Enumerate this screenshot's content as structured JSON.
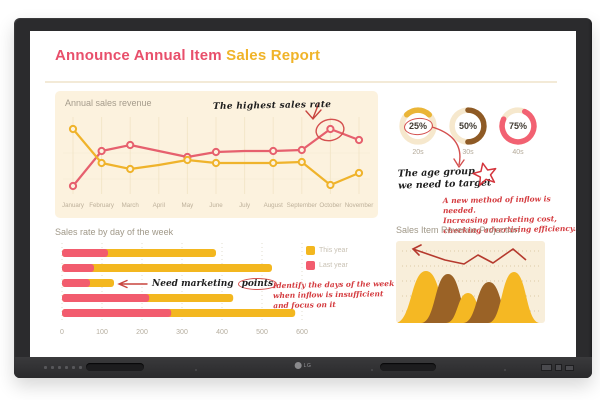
{
  "header": {
    "title_primary": "Announce Annual Item",
    "title_secondary": "Sales Report"
  },
  "device": {
    "brand": "LG"
  },
  "colors": {
    "title_pink": "#e84f6b",
    "title_yellow": "#f0b429",
    "line_red": "#e6606e",
    "line_yellow": "#efb32b",
    "bar_pink": "#f25c6e",
    "bar_yellow": "#f3b71f",
    "panel_cream": "#fcf2de",
    "donut_track": "#f6e8cd",
    "donut_brown": "#8e5a25",
    "donut_pink": "#f26172",
    "red_ink": "#d43b3f",
    "sketch_red": "#d4504f",
    "proj_yellow": "#f5b823",
    "proj_brown": "#9a6226",
    "proj_line": "#b5392d"
  },
  "annotations": {
    "highest": "The highest sales rate",
    "marketing_prefix": "Need marketing",
    "marketing_circled": "points",
    "age_group_line1": "The age group",
    "age_group_line2": "we need to target",
    "weekday_note_lines": [
      "Identify the days of the week",
      "when inflow is insufficient",
      "and focus on it"
    ],
    "inflow_note_lines": [
      "A new method of inflow is needed.",
      "Increasing marketing cost,",
      "checking advertising efficiency."
    ]
  },
  "chart_data": [
    {
      "id": "annual_sales_revenue",
      "type": "line",
      "title": "Annual sales revenue",
      "x": [
        "January",
        "February",
        "March",
        "April",
        "May",
        "June",
        "July",
        "August",
        "September",
        "October",
        "November"
      ],
      "series": [
        {
          "name": "red series",
          "color": "#e6606e",
          "values": [
            10,
            45,
            51,
            45,
            39,
            44,
            45,
            45,
            46,
            67,
            56
          ]
        },
        {
          "name": "yellow series",
          "color": "#efb32b",
          "values": [
            67,
            33,
            27,
            31,
            36,
            33,
            33,
            33,
            34,
            11,
            23
          ]
        }
      ],
      "marker_skip_indices": [
        3,
        6
      ],
      "ylim": [
        0,
        80
      ],
      "grid": "vertical",
      "annotation": "The highest sales rate",
      "highlight": {
        "series": 0,
        "month": "October",
        "value": 67
      }
    },
    {
      "id": "sales_rate_by_day_of_week",
      "type": "bar",
      "title": "Sales rate by day of the week",
      "orientation": "horizontal",
      "stacked": true,
      "categories": [
        "",
        "",
        "",
        "",
        ""
      ],
      "series": [
        {
          "name": "Last year",
          "color": "#f25c6e",
          "values": [
            115,
            80,
            70,
            218,
            273
          ]
        },
        {
          "name": "This year",
          "color": "#f3b71f",
          "values": [
            270,
            445,
            60,
            210,
            310
          ]
        }
      ],
      "xlim": [
        0,
        600
      ],
      "xticks": [
        0,
        100,
        200,
        300,
        400,
        500,
        600
      ],
      "legend_position": "right",
      "annotation": "Need marketing points",
      "note": "Identify the days of the week when inflow is insufficient and focus on it"
    },
    {
      "id": "age_group_share",
      "type": "pie",
      "style": "donut",
      "items": [
        {
          "label": "20s",
          "value": 25,
          "display": "25%",
          "color": "#eab537",
          "highlighted": true
        },
        {
          "label": "30s",
          "value": 50,
          "display": "50%",
          "color": "#8e5a25",
          "highlighted": false
        },
        {
          "label": "40s",
          "value": 75,
          "display": "75%",
          "color": "#f26172",
          "highlighted": false
        }
      ],
      "note": "The age group we need to target"
    },
    {
      "id": "sales_item_revenue_projection",
      "type": "area",
      "title": "Sales Item Revenue Projection",
      "peaks": [
        {
          "color": "#f5b823",
          "center": 30,
          "half_width": 31,
          "height": 52
        },
        {
          "color": "#9a6226",
          "center": 52,
          "half_width": 27,
          "height": 49
        },
        {
          "color": "#f5b823",
          "center": 72,
          "half_width": 22,
          "height": 30
        },
        {
          "color": "#9a6226",
          "center": 93,
          "half_width": 26,
          "height": 41
        },
        {
          "color": "#f5b823",
          "center": 118,
          "half_width": 26,
          "height": 51
        }
      ],
      "trend_line": {
        "color": "#b5392d",
        "points": [
          [
            17,
            8
          ],
          [
            49,
            19
          ],
          [
            68,
            23
          ],
          [
            82,
            14
          ],
          [
            97,
            22
          ],
          [
            117,
            8
          ],
          [
            130,
            19
          ]
        ]
      }
    }
  ]
}
